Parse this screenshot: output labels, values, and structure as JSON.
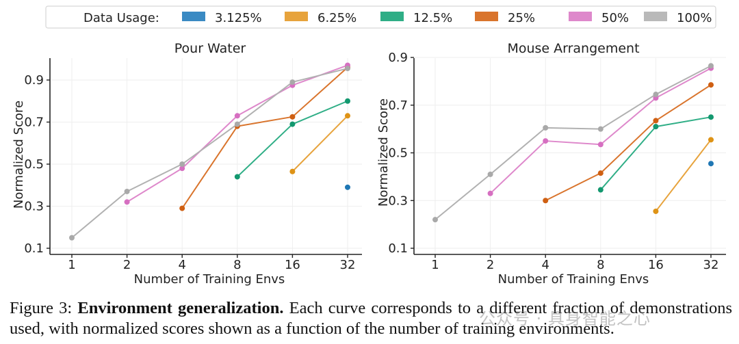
{
  "legend": {
    "title": "Data Usage:",
    "entries": [
      {
        "label": "3.125%",
        "color": "#3a8ac3"
      },
      {
        "label": "6.25%",
        "color": "#e7a33c"
      },
      {
        "label": "12.5%",
        "color": "#2fae86"
      },
      {
        "label": "25%",
        "color": "#d9742c"
      },
      {
        "label": "50%",
        "color": "#de88cb"
      },
      {
        "label": "100%",
        "color": "#b9b9b9"
      }
    ]
  },
  "chart_data": [
    {
      "type": "line",
      "title": "Pour Water",
      "xlabel": "Number of Training Envs",
      "ylabel": "Normalized Score",
      "categories": [
        "1",
        "2",
        "4",
        "8",
        "16",
        "32"
      ],
      "ylim": [
        0.1,
        0.98
      ],
      "yticks": [
        "0.1",
        "0.3",
        "0.5",
        "0.7",
        "0.9"
      ],
      "grid": true,
      "series": [
        {
          "name": "3.125%",
          "line": "#3a8ac3",
          "dot": "#1f77b4",
          "values": [
            null,
            null,
            null,
            null,
            null,
            0.39
          ]
        },
        {
          "name": "6.25%",
          "line": "#e7a33c",
          "dot": "#de9316",
          "values": [
            null,
            null,
            null,
            null,
            0.465,
            0.73
          ]
        },
        {
          "name": "12.5%",
          "line": "#2fae86",
          "dot": "#13986f",
          "values": [
            null,
            null,
            null,
            0.44,
            0.69,
            0.8
          ]
        },
        {
          "name": "25%",
          "line": "#d9742c",
          "dot": "#cf5f12",
          "values": [
            null,
            null,
            0.29,
            0.68,
            0.725,
            0.96
          ]
        },
        {
          "name": "50%",
          "line": "#de88cb",
          "dot": "#d66fc1",
          "values": [
            null,
            0.32,
            0.48,
            0.73,
            0.875,
            0.97
          ]
        },
        {
          "name": "100%",
          "line": "#b1b1b1",
          "dot": "#a9a9a9",
          "values": [
            0.15,
            0.37,
            0.5,
            0.69,
            0.89,
            0.955
          ]
        }
      ]
    },
    {
      "type": "line",
      "title": "Mouse Arrangement",
      "xlabel": "Number of Training Envs",
      "ylabel": "Normalized Score",
      "categories": [
        "1",
        "2",
        "4",
        "8",
        "16",
        "32"
      ],
      "ylim": [
        0.1,
        0.9
      ],
      "yticks": [
        "0.1",
        "0.3",
        "0.5",
        "0.7",
        "0.9"
      ],
      "grid": true,
      "series": [
        {
          "name": "3.125%",
          "line": "#3a8ac3",
          "dot": "#1f77b4",
          "values": [
            null,
            null,
            null,
            null,
            null,
            0.455
          ]
        },
        {
          "name": "6.25%",
          "line": "#e7a33c",
          "dot": "#de9316",
          "values": [
            null,
            null,
            null,
            null,
            0.255,
            0.555
          ]
        },
        {
          "name": "12.5%",
          "line": "#2fae86",
          "dot": "#13986f",
          "values": [
            null,
            null,
            null,
            0.345,
            0.61,
            0.65
          ]
        },
        {
          "name": "25%",
          "line": "#d9742c",
          "dot": "#cf5f12",
          "values": [
            null,
            null,
            0.3,
            0.415,
            0.635,
            0.785
          ]
        },
        {
          "name": "50%",
          "line": "#de88cb",
          "dot": "#d66fc1",
          "values": [
            null,
            0.33,
            0.55,
            0.535,
            0.73,
            0.855
          ]
        },
        {
          "name": "100%",
          "line": "#b1b1b1",
          "dot": "#a9a9a9",
          "values": [
            0.22,
            0.41,
            0.605,
            0.6,
            0.745,
            0.865
          ]
        }
      ]
    }
  ],
  "caption": {
    "label": "Figure 3:",
    "bold": "Environment generalization.",
    "text": "Each curve corresponds to a different fraction of demonstrations used, with normalized scores shown as a function of the number of training environments."
  },
  "watermark": "公众号 · 具身智能之心"
}
